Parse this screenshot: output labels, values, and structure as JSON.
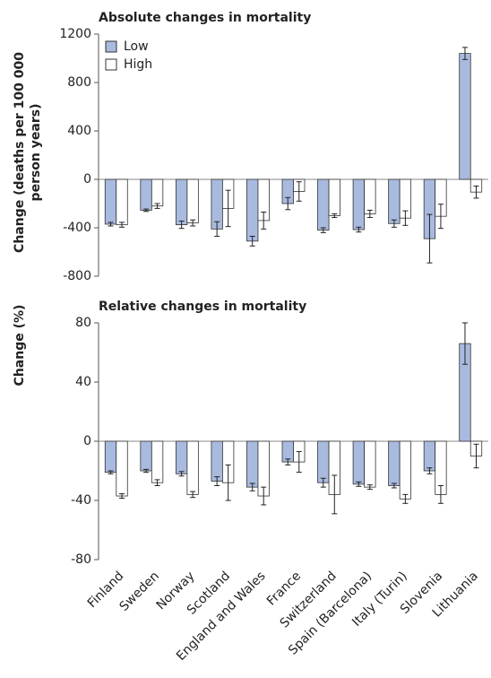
{
  "chart_data": [
    {
      "type": "bar",
      "title": "Absolute changes in mortality",
      "ylabel": [
        "Change (deaths per 100 000",
        "person years)"
      ],
      "ylim": [
        -800,
        1200
      ],
      "yticks": [
        -800,
        -400,
        0,
        400,
        800,
        1200
      ],
      "legend": "upper left",
      "series": [
        {
          "name": "Low",
          "color": "#a9badf",
          "values": [
            -370,
            -255,
            -375,
            -410,
            -510,
            -200,
            -420,
            -415,
            -365,
            -490,
            1040
          ],
          "errors": [
            15,
            10,
            30,
            60,
            40,
            50,
            20,
            20,
            30,
            200,
            50
          ]
        },
        {
          "name": "High",
          "color": "#ffffff",
          "values": [
            -375,
            -220,
            -360,
            -240,
            -340,
            -100,
            -300,
            -285,
            -320,
            -305,
            -105
          ],
          "errors": [
            20,
            20,
            25,
            150,
            70,
            80,
            15,
            30,
            60,
            100,
            50
          ]
        }
      ]
    },
    {
      "type": "bar",
      "title": "Relative changes in mortality",
      "ylabel": [
        "Change (%)"
      ],
      "ylim": [
        -80,
        80
      ],
      "yticks": [
        -80,
        -40,
        0,
        40,
        80
      ],
      "categories": [
        "Finland",
        "Sweden",
        "Norway",
        "Scotland",
        "England and Wales",
        "France",
        "Switzerland",
        "Spain (Barcelona)",
        "Italy (Turin)",
        "Slovenia",
        "Lithuania"
      ],
      "series": [
        {
          "color": "#a9badf",
          "values": [
            -21,
            -20,
            -22,
            -27,
            -31,
            -14,
            -28,
            -29,
            -30,
            -20,
            66
          ],
          "errors": [
            1,
            1,
            1.5,
            3,
            2.5,
            2,
            3,
            1.5,
            1.5,
            2,
            14
          ]
        },
        {
          "color": "#ffffff",
          "values": [
            -37,
            -28,
            -36,
            -28,
            -37,
            -14,
            -36,
            -31,
            -39,
            -36,
            -10
          ],
          "errors": [
            1.5,
            2,
            2,
            12,
            6,
            7,
            13,
            1.5,
            3,
            6,
            8
          ]
        }
      ]
    }
  ]
}
